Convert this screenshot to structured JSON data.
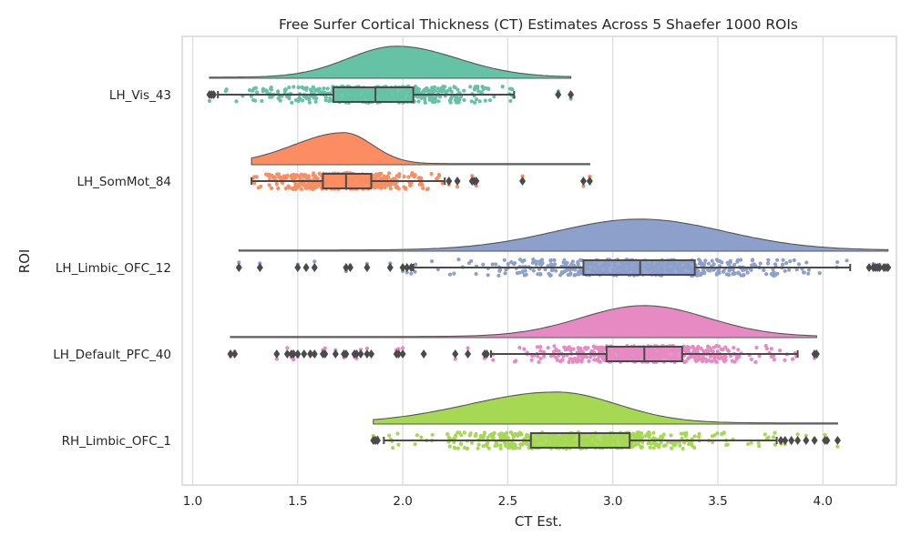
{
  "chart_data": {
    "type": "raincloud",
    "title": "Free Surfer Cortical Thickness (CT) Estimates Across 5 Shaefer 1000 ROIs",
    "xlabel": "CT Est.",
    "ylabel": "ROI",
    "xlim": [
      0.95,
      4.35
    ],
    "xticks": [
      "1.0",
      "1.5",
      "2.0",
      "2.5",
      "3.0",
      "3.5",
      "4.0"
    ],
    "grid": "vertical",
    "categories": [
      "LH_Vis_43",
      "LH_SomMot_84",
      "LH_Limbic_OFC_12",
      "LH_Default_PFC_40",
      "RH_Limbic_OFC_1"
    ],
    "colors": [
      "#66c2a5",
      "#fc8d62",
      "#8da0cb",
      "#e78ac3",
      "#a6d854"
    ],
    "series": [
      {
        "name": "LH_Vis_43",
        "whisker_low": 1.12,
        "q1": 1.67,
        "median": 1.87,
        "q3": 2.05,
        "whisker_high": 2.53,
        "outliers": [
          1.08,
          1.09,
          1.1,
          2.74,
          2.8
        ],
        "density_range": [
          1.08,
          2.8
        ],
        "density_peak": 1.97,
        "spread": 0.27,
        "skew": -0.15
      },
      {
        "name": "LH_SomMot_84",
        "whisker_low": 1.28,
        "q1": 1.62,
        "median": 1.73,
        "q3": 1.85,
        "whisker_high": 2.2,
        "outliers": [
          2.22,
          2.26,
          2.33,
          2.34,
          2.35,
          2.57,
          2.86,
          2.89
        ],
        "density_range": [
          1.28,
          2.89
        ],
        "density_peak": 1.72,
        "spread": 0.17,
        "skew": 0.4
      },
      {
        "name": "LH_Limbic_OFC_12",
        "whisker_low": 2.05,
        "q1": 2.86,
        "median": 3.13,
        "q3": 3.39,
        "whisker_high": 4.13,
        "outliers": [
          1.22,
          1.32,
          1.5,
          1.54,
          1.58,
          1.73,
          1.75,
          1.83,
          1.94,
          2.0,
          2.02,
          2.04,
          4.22,
          4.24,
          4.25,
          4.26,
          4.27,
          4.29,
          4.3,
          4.31
        ],
        "density_range": [
          1.22,
          4.31
        ],
        "density_peak": 3.13,
        "spread": 0.4,
        "skew": 0.0
      },
      {
        "name": "LH_Default_PFC_40",
        "whisker_low": 2.42,
        "q1": 2.97,
        "median": 3.15,
        "q3": 3.33,
        "whisker_high": 3.88,
        "outliers": [
          1.18,
          1.2,
          1.4,
          1.45,
          1.47,
          1.48,
          1.5,
          1.53,
          1.56,
          1.58,
          1.62,
          1.63,
          1.68,
          1.72,
          1.73,
          1.77,
          1.78,
          1.8,
          1.83,
          1.85,
          1.97,
          1.98,
          2.0,
          2.1,
          2.25,
          2.31,
          2.39,
          2.4,
          3.96,
          3.97
        ],
        "density_range": [
          1.18,
          3.97
        ],
        "density_peak": 3.15,
        "spread": 0.3,
        "skew": 0.0
      },
      {
        "name": "RH_Limbic_OFC_1",
        "whisker_low": 1.91,
        "q1": 2.61,
        "median": 2.84,
        "q3": 3.08,
        "whisker_high": 3.78,
        "outliers": [
          1.86,
          1.87,
          1.88,
          3.8,
          3.82,
          3.85,
          3.88,
          3.92,
          3.96,
          4.01,
          4.02,
          4.07
        ],
        "density_range": [
          1.86,
          4.07
        ],
        "density_peak": 2.73,
        "spread": 0.33,
        "skew": 0.25
      }
    ]
  }
}
